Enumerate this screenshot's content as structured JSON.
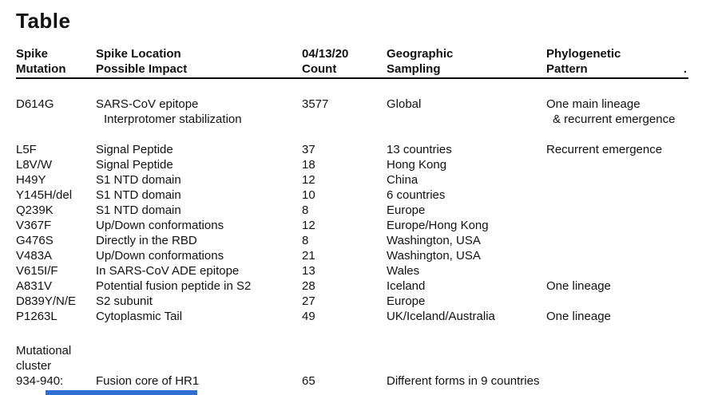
{
  "page": {
    "title": "Table"
  },
  "table": {
    "columns": [
      {
        "line1": "Spike",
        "line2": "Mutation"
      },
      {
        "line1": "Spike Location",
        "line2": "Possible Impact"
      },
      {
        "line1": "04/13/20",
        "line2": "Count"
      },
      {
        "line1": "Geographic",
        "line2": "Sampling"
      },
      {
        "line1": "Phylogenetic",
        "line2": "Pattern"
      }
    ],
    "header_trailing_period": ".",
    "rows": [
      {
        "mutation": "D614G",
        "location": "SARS-CoV epitope",
        "location_line2": "Interprotomer stabilization",
        "count": "3577",
        "geographic": "Global",
        "pattern": "One main lineage",
        "pattern_line2": "& recurrent emergence",
        "gap_after": true
      },
      {
        "mutation": "L5F",
        "location": "Signal Peptide",
        "count": "37",
        "geographic": "13 countries",
        "pattern": "Recurrent emergence"
      },
      {
        "mutation": "L8V/W",
        "location": "Signal Peptide",
        "count": "18",
        "geographic": "Hong Kong",
        "pattern": ""
      },
      {
        "mutation": "H49Y",
        "location": "S1 NTD domain",
        "count": "12",
        "geographic": "China",
        "pattern": ""
      },
      {
        "mutation": "Y145H/del",
        "location": "S1 NTD domain",
        "count": "10",
        "geographic": "6 countries",
        "pattern": ""
      },
      {
        "mutation": "Q239K",
        "location": "S1 NTD domain",
        "count": "8",
        "geographic": "Europe",
        "pattern": ""
      },
      {
        "mutation": "V367F",
        "location": "Up/Down conformations",
        "count": "12",
        "geographic": "Europe/Hong Kong",
        "pattern": ""
      },
      {
        "mutation": "G476S",
        "location": "Directly in the RBD",
        "count": "8",
        "geographic": "Washington, USA",
        "pattern": ""
      },
      {
        "mutation": "V483A",
        "location": "Up/Down conformations",
        "count": "21",
        "geographic": "Washington, USA",
        "pattern": ""
      },
      {
        "mutation": "V615I/F",
        "location": "In SARS-CoV ADE epitope",
        "count": "13",
        "geographic": "Wales",
        "pattern": ""
      },
      {
        "mutation": "A831V",
        "location": "Potential fusion peptide in S2",
        "count": "28",
        "geographic": "Iceland",
        "pattern": "One lineage"
      },
      {
        "mutation": "D839Y/N/E",
        "location": "S2 subunit",
        "count": "27",
        "geographic": "Europe",
        "pattern": ""
      },
      {
        "mutation": "P1263L",
        "location": "Cytoplasmic Tail",
        "count": "49",
        "geographic": "UK/Iceland/Australia",
        "pattern": "One lineage"
      }
    ],
    "footer_group": {
      "label_line1": "Mutational",
      "label_line2": "cluster",
      "row": {
        "mutation": "934-940:",
        "location": "Fusion core of HR1",
        "count": "65",
        "geographic": "Different forms in 9 countries",
        "pattern": ""
      }
    }
  },
  "accent": {
    "cropped_blue_bar_color": "#2f6fd2"
  }
}
